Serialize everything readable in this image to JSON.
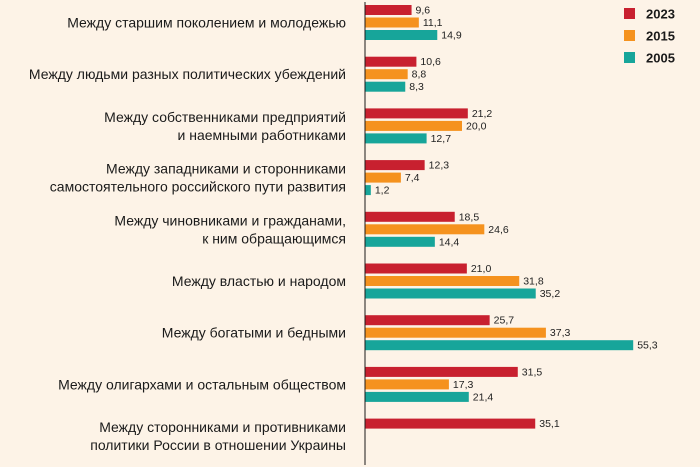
{
  "chart_data": {
    "type": "bar",
    "orientation": "horizontal",
    "categories": [
      [
        "Между старшим поколением и молодежью"
      ],
      [
        "Между людьми разных политических убеждений"
      ],
      [
        "Между собственниками предприятий",
        "и наемными работниками"
      ],
      [
        "Между западниками и сторонниками",
        "самостоятельного российского пути развития"
      ],
      [
        "Между чиновниками и гражданами,",
        "к ним обращающимся"
      ],
      [
        "Между властью и народом"
      ],
      [
        "Между богатыми и бедными"
      ],
      [
        "Между олигархами и остальным обществом"
      ],
      [
        "Между сторонниками и противниками",
        "политики России в отношении Украины"
      ]
    ],
    "series": [
      {
        "name": "2023",
        "color": "#c8202f",
        "values": [
          9.6,
          10.6,
          21.2,
          12.3,
          18.5,
          21.0,
          25.7,
          31.5,
          35.1
        ]
      },
      {
        "name": "2015",
        "color": "#f5921e",
        "values": [
          11.1,
          8.8,
          20.0,
          7.4,
          24.6,
          31.8,
          37.3,
          17.3,
          null
        ]
      },
      {
        "name": "2005",
        "color": "#17a59a",
        "values": [
          14.9,
          8.3,
          12.7,
          1.2,
          14.4,
          35.2,
          55.3,
          21.4,
          null
        ]
      }
    ],
    "value_labels": [
      [
        "9,6",
        "11,1",
        "14,9"
      ],
      [
        "10,6",
        "8,8",
        "8,3"
      ],
      [
        "21,2",
        "20,0",
        "12,7"
      ],
      [
        "12,3",
        "7,4",
        "1,2"
      ],
      [
        "18,5",
        "24,6",
        "14,4"
      ],
      [
        "21,0",
        "31,8",
        "35,2"
      ],
      [
        "25,7",
        "37,3",
        "55,3"
      ],
      [
        "31,5",
        "17,3",
        "21,4"
      ],
      [
        "35,1",
        "",
        ""
      ]
    ],
    "legend_position": "top-right",
    "xlim": [
      0,
      60
    ],
    "grid": false
  }
}
